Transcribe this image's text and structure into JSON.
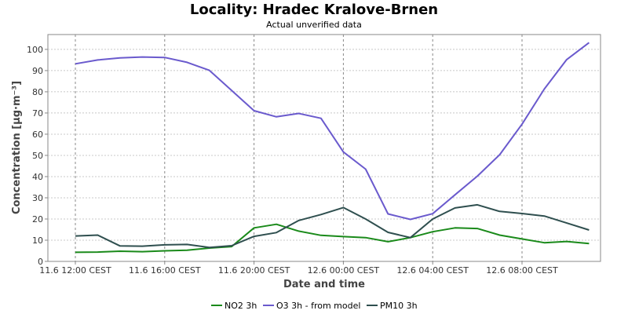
{
  "chart_data": {
    "type": "line",
    "title": "Locality: Hradec Kralove-Brnen",
    "subtitle": "Actual unverified data",
    "xlabel": "Date and time",
    "ylabel": "Concentration [µg·m⁻³]",
    "ylim": [
      0,
      107
    ],
    "yticks": [
      0,
      10,
      20,
      30,
      40,
      50,
      60,
      70,
      80,
      90,
      100
    ],
    "grid": true,
    "legend_position": "bottom",
    "x": [
      "11.6 12:00",
      "11.6 13:00",
      "11.6 14:00",
      "11.6 15:00",
      "11.6 16:00",
      "11.6 17:00",
      "11.6 18:00",
      "11.6 19:00",
      "11.6 20:00",
      "11.6 21:00",
      "11.6 22:00",
      "11.6 23:00",
      "12.6 00:00",
      "12.6 01:00",
      "12.6 02:00",
      "12.6 03:00",
      "12.6 04:00",
      "12.6 05:00",
      "12.6 06:00",
      "12.6 07:00",
      "12.6 08:00",
      "12.6 09:00",
      "12.6 10:00",
      "12.6 11:00"
    ],
    "xticks": [
      {
        "index": 0,
        "label": "11.6 12:00 CEST"
      },
      {
        "index": 4,
        "label": "11.6 16:00 CEST"
      },
      {
        "index": 8,
        "label": "11.6 20:00 CEST"
      },
      {
        "index": 12,
        "label": "12.6 00:00 CEST"
      },
      {
        "index": 16,
        "label": "12.6 04:00 CEST"
      },
      {
        "index": 20,
        "label": "12.6 08:00 CEST"
      }
    ],
    "series": [
      {
        "name": "NO2 3h",
        "color": "#1a8a1a",
        "values": [
          4.3,
          4.4,
          4.8,
          4.6,
          5.0,
          5.3,
          6.3,
          7.0,
          15.8,
          17.5,
          14.3,
          12.3,
          11.7,
          11.2,
          9.3,
          11.2,
          14.0,
          15.8,
          15.5,
          12.4,
          10.6,
          8.8,
          9.4,
          8.4
        ]
      },
      {
        "name": "O3 3h - from model",
        "color": "#6a5acd",
        "values": [
          93.2,
          95.0,
          96.0,
          96.4,
          96.2,
          93.9,
          90.1,
          80.6,
          71.1,
          68.2,
          69.8,
          67.5,
          51.6,
          43.5,
          22.4,
          19.8,
          22.5,
          31.4,
          40.2,
          50.3,
          64.7,
          81.3,
          95.2,
          103.2
        ]
      },
      {
        "name": "PM10 3h",
        "color": "#2f4f4f",
        "values": [
          12.0,
          12.4,
          7.3,
          7.2,
          7.8,
          8.0,
          6.6,
          7.4,
          11.8,
          13.6,
          19.3,
          22.1,
          25.4,
          20.0,
          13.7,
          11.2,
          20.0,
          25.2,
          26.7,
          23.6,
          22.6,
          21.4,
          18.1,
          14.8
        ]
      }
    ]
  }
}
